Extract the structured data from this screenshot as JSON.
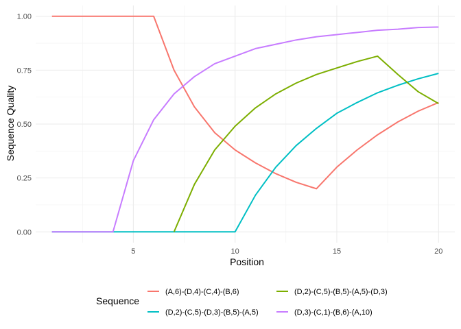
{
  "chart_data": {
    "type": "line",
    "xlabel": "Position",
    "ylabel": "Sequence Quality",
    "xlim": [
      0.2,
      20.8
    ],
    "ylim": [
      -0.05,
      1.05
    ],
    "x_ticks": [
      5,
      10,
      15,
      20
    ],
    "y_ticks": [
      0.0,
      0.25,
      0.5,
      0.75,
      1.0
    ],
    "y_tick_labels": [
      "0.00",
      "0.25",
      "0.50",
      "0.75",
      "1.00"
    ],
    "grid": true,
    "legend": {
      "title": "Sequence",
      "position": "bottom"
    },
    "x": [
      1,
      2,
      3,
      4,
      5,
      6,
      7,
      8,
      9,
      10,
      11,
      12,
      13,
      14,
      15,
      16,
      17,
      18,
      19,
      20
    ],
    "series": [
      {
        "name": "(A,6)-(D,4)-(C,4)-(B,6)",
        "color": "#F8766D",
        "values": [
          1.0,
          1.0,
          1.0,
          1.0,
          1.0,
          1.0,
          0.75,
          0.58,
          0.46,
          0.38,
          0.32,
          0.27,
          0.23,
          0.2,
          0.3,
          0.38,
          0.45,
          0.51,
          0.56,
          0.6
        ]
      },
      {
        "name": "(D,2)-(C,5)-(D,3)-(B,5)-(A,5)",
        "color": "#00BFC4",
        "values": [
          0,
          0,
          0,
          0,
          0,
          0,
          0,
          0,
          0,
          0,
          0.17,
          0.3,
          0.4,
          0.48,
          0.55,
          0.6,
          0.645,
          0.68,
          0.71,
          0.735
        ]
      },
      {
        "name": "(D,2)-(C,5)-(B,5)-(A,5)-(D,3)",
        "color": "#7CAE00",
        "values": [
          null,
          null,
          null,
          null,
          null,
          null,
          0,
          0.22,
          0.38,
          0.49,
          0.575,
          0.64,
          0.69,
          0.73,
          0.76,
          0.79,
          0.815,
          0.73,
          0.65,
          0.595
        ]
      },
      {
        "name": "(D,3)-(C,1)-(B,6)-(A,10)",
        "color": "#C77CFF",
        "values": [
          0,
          0,
          0,
          0,
          0.33,
          0.52,
          0.64,
          0.72,
          0.78,
          0.815,
          0.85,
          0.87,
          0.89,
          0.905,
          0.915,
          0.925,
          0.935,
          0.94,
          0.948,
          0.95
        ]
      }
    ]
  }
}
